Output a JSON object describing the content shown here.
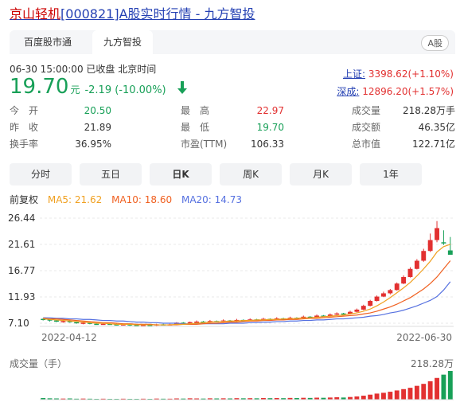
{
  "title": {
    "keyword": "京山轻机",
    "rest": "[000821]A股实时行情 - 九方智投"
  },
  "tabs": [
    "百度股市通",
    "九方智投"
  ],
  "badge": "A股",
  "meta": "06-30 15:00:00  已收盘  北京时间",
  "price": {
    "value": "19.70",
    "unit": "元",
    "change": "-2.19 (-10.00%)"
  },
  "indices": [
    {
      "label": "上证:",
      "value": "3398.62(+1.10%)"
    },
    {
      "label": "深成:",
      "value": "12896.20(+1.57%)"
    }
  ],
  "stats": [
    {
      "k": "今　开",
      "v": "20.50",
      "c": "green"
    },
    {
      "k": "最　高",
      "v": "22.97",
      "c": "red"
    },
    {
      "k": "成交量",
      "v": "218.28万手",
      "c": ""
    },
    {
      "k": "昨　收",
      "v": "21.89",
      "c": ""
    },
    {
      "k": "最　低",
      "v": "19.70",
      "c": "green"
    },
    {
      "k": "成交额",
      "v": "46.35亿",
      "c": ""
    },
    {
      "k": "换手率",
      "v": "36.95%",
      "c": ""
    },
    {
      "k": "市盈(TTM)",
      "v": "106.33",
      "c": ""
    },
    {
      "k": "总市值",
      "v": "122.71亿",
      "c": ""
    }
  ],
  "periods": [
    "分时",
    "五日",
    "日K",
    "周K",
    "月K",
    "1年"
  ],
  "ma": {
    "adjust": "前复权",
    "ma5": "MA5: 21.62",
    "ma10": "MA10: 18.60",
    "ma20": "MA20: 14.73"
  },
  "colors": {
    "up": "#e23030",
    "down": "#18a058",
    "ma5": "#f0a020",
    "ma10": "#f06020",
    "ma20": "#5570e0"
  },
  "chart_data": {
    "type": "candlestick",
    "y_ticks": [
      "26.44",
      "21.61",
      "16.77",
      "11.93",
      "7.10"
    ],
    "ylim": [
      7.1,
      26.44
    ],
    "x_labels": [
      "2022-04-12",
      "2022-06-30"
    ],
    "candles": [
      [
        7.9,
        7.8,
        8.0,
        7.6
      ],
      [
        7.8,
        7.6,
        7.9,
        7.4
      ],
      [
        7.6,
        7.4,
        7.7,
        7.3
      ],
      [
        7.4,
        7.5,
        7.6,
        7.2
      ],
      [
        7.5,
        7.3,
        7.6,
        7.2
      ],
      [
        7.3,
        7.1,
        7.4,
        7.0
      ],
      [
        7.1,
        7.2,
        7.3,
        6.9
      ],
      [
        7.2,
        7.0,
        7.3,
        6.9
      ],
      [
        7.0,
        6.9,
        7.1,
        6.8
      ],
      [
        6.9,
        7.0,
        7.1,
        6.8
      ],
      [
        7.0,
        6.9,
        7.1,
        6.8
      ],
      [
        6.9,
        6.8,
        7.0,
        6.7
      ],
      [
        6.8,
        6.9,
        7.0,
        6.7
      ],
      [
        6.9,
        6.8,
        7.0,
        6.6
      ],
      [
        6.8,
        6.7,
        6.9,
        6.6
      ],
      [
        6.7,
        6.8,
        6.9,
        6.6
      ],
      [
        6.8,
        6.7,
        6.9,
        6.6
      ],
      [
        6.7,
        6.9,
        7.0,
        6.6
      ],
      [
        6.9,
        6.8,
        7.0,
        6.7
      ],
      [
        6.8,
        6.9,
        7.0,
        6.7
      ],
      [
        6.9,
        7.2,
        7.3,
        6.8
      ],
      [
        7.2,
        7.0,
        7.3,
        6.9
      ],
      [
        7.0,
        7.3,
        7.4,
        6.9
      ],
      [
        7.3,
        7.4,
        7.6,
        7.2
      ],
      [
        7.4,
        7.3,
        7.5,
        7.2
      ],
      [
        7.3,
        7.5,
        7.7,
        7.2
      ],
      [
        7.5,
        7.4,
        7.6,
        7.3
      ],
      [
        7.4,
        7.6,
        7.8,
        7.3
      ],
      [
        7.6,
        7.5,
        7.7,
        7.4
      ],
      [
        7.5,
        7.7,
        7.9,
        7.4
      ],
      [
        7.7,
        7.6,
        7.8,
        7.5
      ],
      [
        7.6,
        7.8,
        8.0,
        7.5
      ],
      [
        7.8,
        7.7,
        7.9,
        7.6
      ],
      [
        7.7,
        7.9,
        8.1,
        7.6
      ],
      [
        7.9,
        7.8,
        8.0,
        7.7
      ],
      [
        7.8,
        8.0,
        8.2,
        7.7
      ],
      [
        8.0,
        7.9,
        8.1,
        7.8
      ],
      [
        7.9,
        8.1,
        8.3,
        7.8
      ],
      [
        8.1,
        8.0,
        8.2,
        7.9
      ],
      [
        8.0,
        8.3,
        8.5,
        7.9
      ],
      [
        8.3,
        8.2,
        8.4,
        8.1
      ],
      [
        8.2,
        8.5,
        8.7,
        8.1
      ],
      [
        8.5,
        8.4,
        8.6,
        8.3
      ],
      [
        8.4,
        8.7,
        8.9,
        8.3
      ],
      [
        8.7,
        8.9,
        9.1,
        8.6
      ],
      [
        8.9,
        8.8,
        9.0,
        8.7
      ],
      [
        8.8,
        9.2,
        9.4,
        8.7
      ],
      [
        9.2,
        9.6,
        9.8,
        9.1
      ],
      [
        9.6,
        10.3,
        10.5,
        9.5
      ],
      [
        10.3,
        11.2,
        11.4,
        10.2
      ],
      [
        11.2,
        12.0,
        12.2,
        11.1
      ],
      [
        12.0,
        12.6,
        12.9,
        11.9
      ],
      [
        12.6,
        13.2,
        13.4,
        12.4
      ],
      [
        13.2,
        14.4,
        14.6,
        13.1
      ],
      [
        14.4,
        15.6,
        15.9,
        14.3
      ],
      [
        15.6,
        17.1,
        17.4,
        15.5
      ],
      [
        17.1,
        18.6,
        18.9,
        17.0
      ],
      [
        18.6,
        20.4,
        20.8,
        18.4
      ],
      [
        20.4,
        22.4,
        23.6,
        20.2
      ],
      [
        22.4,
        24.6,
        25.9,
        22.0
      ],
      [
        22.0,
        21.9,
        24.2,
        21.5
      ],
      [
        20.5,
        19.7,
        22.97,
        19.7
      ]
    ],
    "ma5": [
      7.9,
      7.8,
      7.7,
      7.6,
      7.5,
      7.4,
      7.3,
      7.2,
      7.1,
      7.1,
      7.0,
      6.9,
      6.9,
      6.9,
      6.8,
      6.8,
      6.8,
      6.8,
      6.8,
      6.8,
      6.9,
      6.9,
      7.0,
      7.1,
      7.2,
      7.3,
      7.4,
      7.4,
      7.5,
      7.5,
      7.6,
      7.6,
      7.7,
      7.7,
      7.8,
      7.8,
      7.9,
      7.9,
      8.0,
      8.1,
      8.1,
      8.2,
      8.3,
      8.4,
      8.5,
      8.6,
      8.8,
      9.0,
      9.3,
      9.7,
      10.3,
      11.0,
      11.8,
      12.7,
      13.6,
      14.6,
      15.8,
      17.1,
      18.5,
      20.2,
      21.2,
      21.62
    ],
    "ma10": [
      8.0,
      7.9,
      7.9,
      7.8,
      7.7,
      7.6,
      7.5,
      7.4,
      7.3,
      7.2,
      7.2,
      7.1,
      7.0,
      7.0,
      6.9,
      6.9,
      6.9,
      6.8,
      6.8,
      6.8,
      6.8,
      6.9,
      6.9,
      6.9,
      7.0,
      7.1,
      7.1,
      7.2,
      7.3,
      7.3,
      7.4,
      7.5,
      7.5,
      7.6,
      7.6,
      7.7,
      7.7,
      7.8,
      7.8,
      7.9,
      8.0,
      8.0,
      8.1,
      8.2,
      8.3,
      8.4,
      8.5,
      8.6,
      8.8,
      9.0,
      9.3,
      9.7,
      10.1,
      10.6,
      11.2,
      11.8,
      12.6,
      13.4,
      14.4,
      15.6,
      17.1,
      18.6
    ],
    "ma20": [
      8.1,
      8.1,
      8.0,
      8.0,
      7.9,
      7.9,
      7.8,
      7.8,
      7.7,
      7.6,
      7.6,
      7.5,
      7.5,
      7.4,
      7.3,
      7.3,
      7.2,
      7.2,
      7.1,
      7.1,
      7.1,
      7.0,
      7.0,
      7.0,
      7.0,
      7.0,
      7.0,
      7.0,
      7.1,
      7.1,
      7.1,
      7.2,
      7.2,
      7.3,
      7.3,
      7.4,
      7.4,
      7.5,
      7.5,
      7.6,
      7.6,
      7.7,
      7.7,
      7.8,
      7.9,
      7.9,
      8.0,
      8.1,
      8.2,
      8.4,
      8.5,
      8.7,
      9.0,
      9.2,
      9.5,
      9.9,
      10.3,
      10.8,
      11.3,
      12.0,
      13.2,
      14.73
    ],
    "volume_label": "成交量（手）",
    "volume_max": "218.28万",
    "volume": [
      12,
      10,
      9,
      8,
      9,
      7,
      8,
      7,
      6,
      7,
      6,
      6,
      7,
      6,
      6,
      7,
      6,
      8,
      7,
      7,
      9,
      8,
      10,
      9,
      8,
      10,
      9,
      10,
      9,
      11,
      10,
      11,
      10,
      12,
      11,
      12,
      11,
      13,
      12,
      14,
      13,
      15,
      14,
      16,
      18,
      16,
      20,
      24,
      30,
      38,
      46,
      52,
      60,
      70,
      80,
      90,
      105,
      120,
      140,
      165,
      190,
      218
    ]
  }
}
